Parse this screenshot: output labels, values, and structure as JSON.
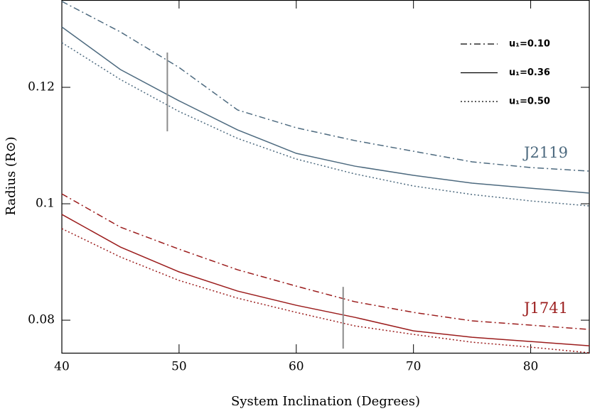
{
  "chart_data": {
    "type": "line",
    "xlabel": "System Inclination (Degrees)",
    "ylabel": "Radius (R⊙)",
    "x": [
      40,
      45,
      50,
      55,
      60,
      65,
      70,
      75,
      80,
      85
    ],
    "xlim": [
      40,
      85
    ],
    "xticks": [
      40,
      50,
      60,
      70,
      80
    ],
    "ylim": [
      0.0744,
      0.135
    ],
    "yticks": [
      0.08,
      0.1,
      0.12
    ],
    "legend": [
      "u₁=0.10",
      "u₁=0.36",
      "u₁=0.50"
    ],
    "line_styles": [
      "dashdot",
      "solid",
      "dotted"
    ],
    "legend_position": "upper right",
    "series": [
      {
        "name": "J2119",
        "color": "#4d6a7f",
        "values": [
          [
            0.13476,
            0.12951,
            0.12341,
            0.1161,
            0.11305,
            0.11085,
            0.10902,
            0.1072,
            0.10622,
            0.10561
          ],
          [
            0.13037,
            0.12305,
            0.11768,
            0.11268,
            0.10866,
            0.10646,
            0.10488,
            0.10354,
            0.10268,
            0.10183
          ],
          [
            0.12768,
            0.12134,
            0.11585,
            0.11122,
            0.10768,
            0.10512,
            0.10305,
            0.10159,
            0.10049,
            0.09963
          ]
        ]
      },
      {
        "name": "J1741",
        "color": "#9b1c1c",
        "values": [
          [
            0.1017,
            0.09598,
            0.0922,
            0.08866,
            0.08585,
            0.08317,
            0.08134,
            0.07988,
            0.07915,
            0.07841
          ],
          [
            0.09817,
            0.09256,
            0.0883,
            0.085,
            0.08256,
            0.08049,
            0.07817,
            0.07707,
            0.07634,
            0.07561
          ],
          [
            0.09573,
            0.09085,
            0.08683,
            0.08378,
            0.08134,
            0.07902,
            0.07756,
            0.07622,
            0.07537,
            0.0744
          ]
        ]
      }
    ],
    "error_bars": [
      {
        "x": 49,
        "low": 0.11244,
        "high": 0.12598,
        "color": "#8c8c8c"
      },
      {
        "x": 64,
        "low": 0.07512,
        "high": 0.08573,
        "color": "#8c8c8c"
      }
    ]
  }
}
